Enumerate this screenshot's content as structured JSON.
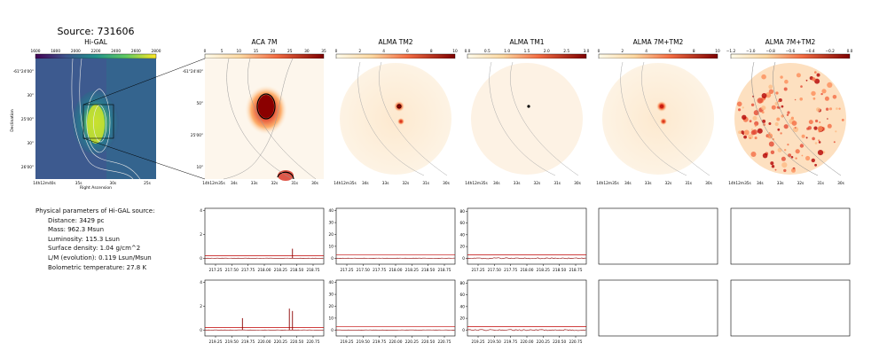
{
  "figure": {
    "title": "Source: 731606"
  },
  "images": [
    {
      "title": "Hi-GAL",
      "cbar_ticks": [
        "1600",
        "1800",
        "2000",
        "2200",
        "2400",
        "2600",
        "2800"
      ],
      "ra_ticks": [
        "14h12m40s",
        "35s",
        "30s",
        "25s"
      ],
      "dec_ticks": [
        "-61°24'00\"",
        "30\"",
        "25'00\"",
        "30\"",
        "26'00\""
      ],
      "xlabel": "Right Ascension",
      "ylabel": "Declination"
    },
    {
      "title": "ACA 7M",
      "cbar_ticks": [
        "0",
        "5",
        "10",
        "15",
        "20",
        "25",
        "30",
        "35"
      ],
      "ra_ticks": [
        "14h12m35s",
        "34s",
        "33s",
        "32s",
        "31s",
        "30s"
      ],
      "dec_ticks": [
        "-61°24'40\"",
        "50\"",
        "25'00\"",
        "10\""
      ]
    },
    {
      "title": "ALMA TM2",
      "cbar_ticks": [
        "0",
        "2",
        "4",
        "6",
        "8",
        "10"
      ],
      "ra_ticks": [
        "14h12m35s",
        "34s",
        "33s",
        "32s",
        "31s",
        "30s"
      ]
    },
    {
      "title": "ALMA TM1",
      "cbar_ticks": [
        "0.0",
        "0.5",
        "1.0",
        "1.5",
        "2.0",
        "2.5",
        "3.0"
      ],
      "ra_ticks": [
        "14h12m35s",
        "34s",
        "33s",
        "32s",
        "31s",
        "30s"
      ]
    },
    {
      "title": "ALMA 7M+TM2",
      "cbar_ticks": [
        "0",
        "2",
        "4",
        "6",
        "8",
        "10"
      ],
      "ra_ticks": [
        "14h12m35s",
        "34s",
        "33s",
        "32s",
        "31s",
        "30s"
      ]
    },
    {
      "title": "ALMA 7M+TM2",
      "cbar_ticks": [
        "−1.2",
        "−1.0",
        "−0.8",
        "−0.6",
        "−0.4",
        "−0.2",
        "0.0"
      ],
      "ra_ticks": [
        "14h12m35s",
        "34s",
        "33s",
        "32s",
        "31s",
        "30s"
      ]
    }
  ],
  "parameters": {
    "header": "Physical parameters of Hi-GAL source:",
    "distance": "Distance: 3429 pc",
    "mass": "Mass: 962.3 Msun",
    "luminosity": "Luminosity: 115.3 Lsun",
    "surface_density": "Surface density: 1.04 g/cm^2",
    "lm": "L/M (evolution): 0.119 Lsun/Msun",
    "tbol": "Bolometric temperature: 27.8 K"
  },
  "colors": {
    "spectrum": "#8b0000",
    "baseline": "#c00000",
    "axes": "#000000"
  },
  "chart_data": [
    {
      "type": "line",
      "panel": "spectrum ACA 7M upper",
      "x": [
        217.0,
        217.25,
        217.5,
        217.75,
        218.0,
        218.25,
        218.4,
        218.5,
        218.75,
        218.9
      ],
      "x_ticks": [
        "217.25",
        "217.50",
        "217.75",
        "218.00",
        "218.25",
        "218.50",
        "218.75"
      ],
      "y_ticks": [
        "0",
        "2",
        "4"
      ],
      "ylim": [
        -0.5,
        4.2
      ],
      "series": [
        {
          "values": [
            0.0,
            0.02,
            0.0,
            0.03,
            0.0,
            0.1,
            0.8,
            0.1,
            0.0,
            0.0
          ]
        },
        {
          "values": [
            0.2,
            0.2,
            0.2,
            0.2,
            0.2,
            0.2,
            0.2,
            0.2,
            0.2,
            0.2
          ]
        }
      ]
    },
    {
      "type": "line",
      "panel": "spectrum ALMA TM2 upper",
      "x_ticks": [
        "217.25",
        "217.50",
        "217.75",
        "218.00",
        "218.25",
        "218.50",
        "218.75"
      ],
      "y_ticks": [
        "0",
        "10",
        "20",
        "30",
        "40"
      ],
      "ylim": [
        -5,
        42
      ]
    },
    {
      "type": "line",
      "panel": "spectrum ALMA TM1 upper",
      "x_ticks": [
        "217.25",
        "217.50",
        "217.75",
        "218.00",
        "218.25",
        "218.50",
        "218.75"
      ],
      "y_ticks": [
        "0",
        "20",
        "40",
        "60",
        "80"
      ],
      "ylim": [
        -10,
        85
      ]
    },
    {
      "type": "line",
      "panel": "spectrum ACA 7M lower",
      "x": [
        219.0,
        219.25,
        219.6,
        219.75,
        220.0,
        220.35,
        220.4,
        220.5,
        220.75,
        220.9
      ],
      "x_ticks": [
        "219.25",
        "219.50",
        "219.75",
        "220.00",
        "220.25",
        "220.50",
        "220.75"
      ],
      "y_ticks": [
        "0",
        "2",
        "4"
      ],
      "ylim": [
        -0.5,
        4.2
      ],
      "series": [
        {
          "values": [
            0.0,
            0.0,
            1.0,
            0.0,
            0.0,
            1.8,
            1.6,
            0.0,
            0.0,
            0.0
          ]
        },
        {
          "values": [
            0.2,
            0.2,
            0.2,
            0.2,
            0.2,
            0.2,
            0.2,
            0.2,
            0.2,
            0.2
          ]
        }
      ]
    },
    {
      "type": "line",
      "panel": "spectrum ALMA TM2 lower",
      "x_ticks": [
        "219.25",
        "219.50",
        "219.75",
        "220.00",
        "220.25",
        "220.50",
        "220.75"
      ],
      "y_ticks": [
        "0",
        "10",
        "20",
        "30",
        "40"
      ],
      "ylim": [
        -5,
        42
      ]
    },
    {
      "type": "line",
      "panel": "spectrum ALMA TM1 lower",
      "x_ticks": [
        "219.25",
        "219.50",
        "219.75",
        "220.00",
        "220.25",
        "220.50",
        "220.75"
      ],
      "y_ticks": [
        "0",
        "20",
        "40",
        "60",
        "80"
      ],
      "ylim": [
        -10,
        85
      ]
    }
  ]
}
